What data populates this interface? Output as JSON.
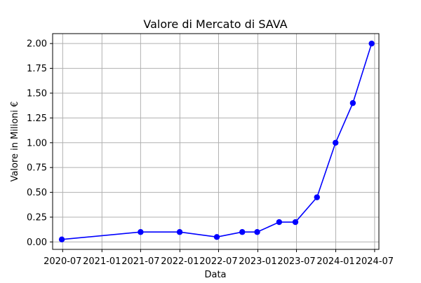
{
  "chart_data": {
    "type": "line",
    "title": "Valore di Mercato di SAVA",
    "xlabel": "Data",
    "ylabel": "Valore in Milioni €",
    "x_axis_kind": "date",
    "xlim": [
      "2020-05-15",
      "2024-07-21"
    ],
    "ylim": [
      -0.075,
      2.1
    ],
    "grid": true,
    "line_color": "#0000ff",
    "marker_color": "#0000ff",
    "x_ticks": [
      {
        "date": "2020-07-01",
        "label": "2020-07"
      },
      {
        "date": "2021-01-01",
        "label": "2021-01"
      },
      {
        "date": "2021-07-01",
        "label": "2021-07"
      },
      {
        "date": "2022-01-01",
        "label": "2022-01"
      },
      {
        "date": "2022-07-01",
        "label": "2022-07"
      },
      {
        "date": "2023-01-01",
        "label": "2023-01"
      },
      {
        "date": "2023-07-01",
        "label": "2023-07"
      },
      {
        "date": "2024-01-01",
        "label": "2024-01"
      },
      {
        "date": "2024-07-01",
        "label": "2024-07"
      }
    ],
    "y_ticks": [
      {
        "value": 0.0,
        "label": "0.00"
      },
      {
        "value": 0.25,
        "label": "0.25"
      },
      {
        "value": 0.5,
        "label": "0.50"
      },
      {
        "value": 0.75,
        "label": "0.75"
      },
      {
        "value": 1.0,
        "label": "1.00"
      },
      {
        "value": 1.25,
        "label": "1.25"
      },
      {
        "value": 1.5,
        "label": "1.50"
      },
      {
        "value": 1.75,
        "label": "1.75"
      },
      {
        "value": 2.0,
        "label": "2.00"
      }
    ],
    "series": [
      {
        "x": [
          "2020-06-27",
          "2021-07-01",
          "2021-12-31",
          "2022-06-23",
          "2022-10-20",
          "2022-12-29",
          "2023-04-11",
          "2023-06-26",
          "2023-10-05",
          "2023-12-31",
          "2024-03-21",
          "2024-06-17"
        ],
        "y": [
          0.025,
          0.1,
          0.1,
          0.05,
          0.1,
          0.1,
          0.2,
          0.2,
          0.45,
          1.0,
          1.4,
          2.0
        ]
      }
    ]
  }
}
